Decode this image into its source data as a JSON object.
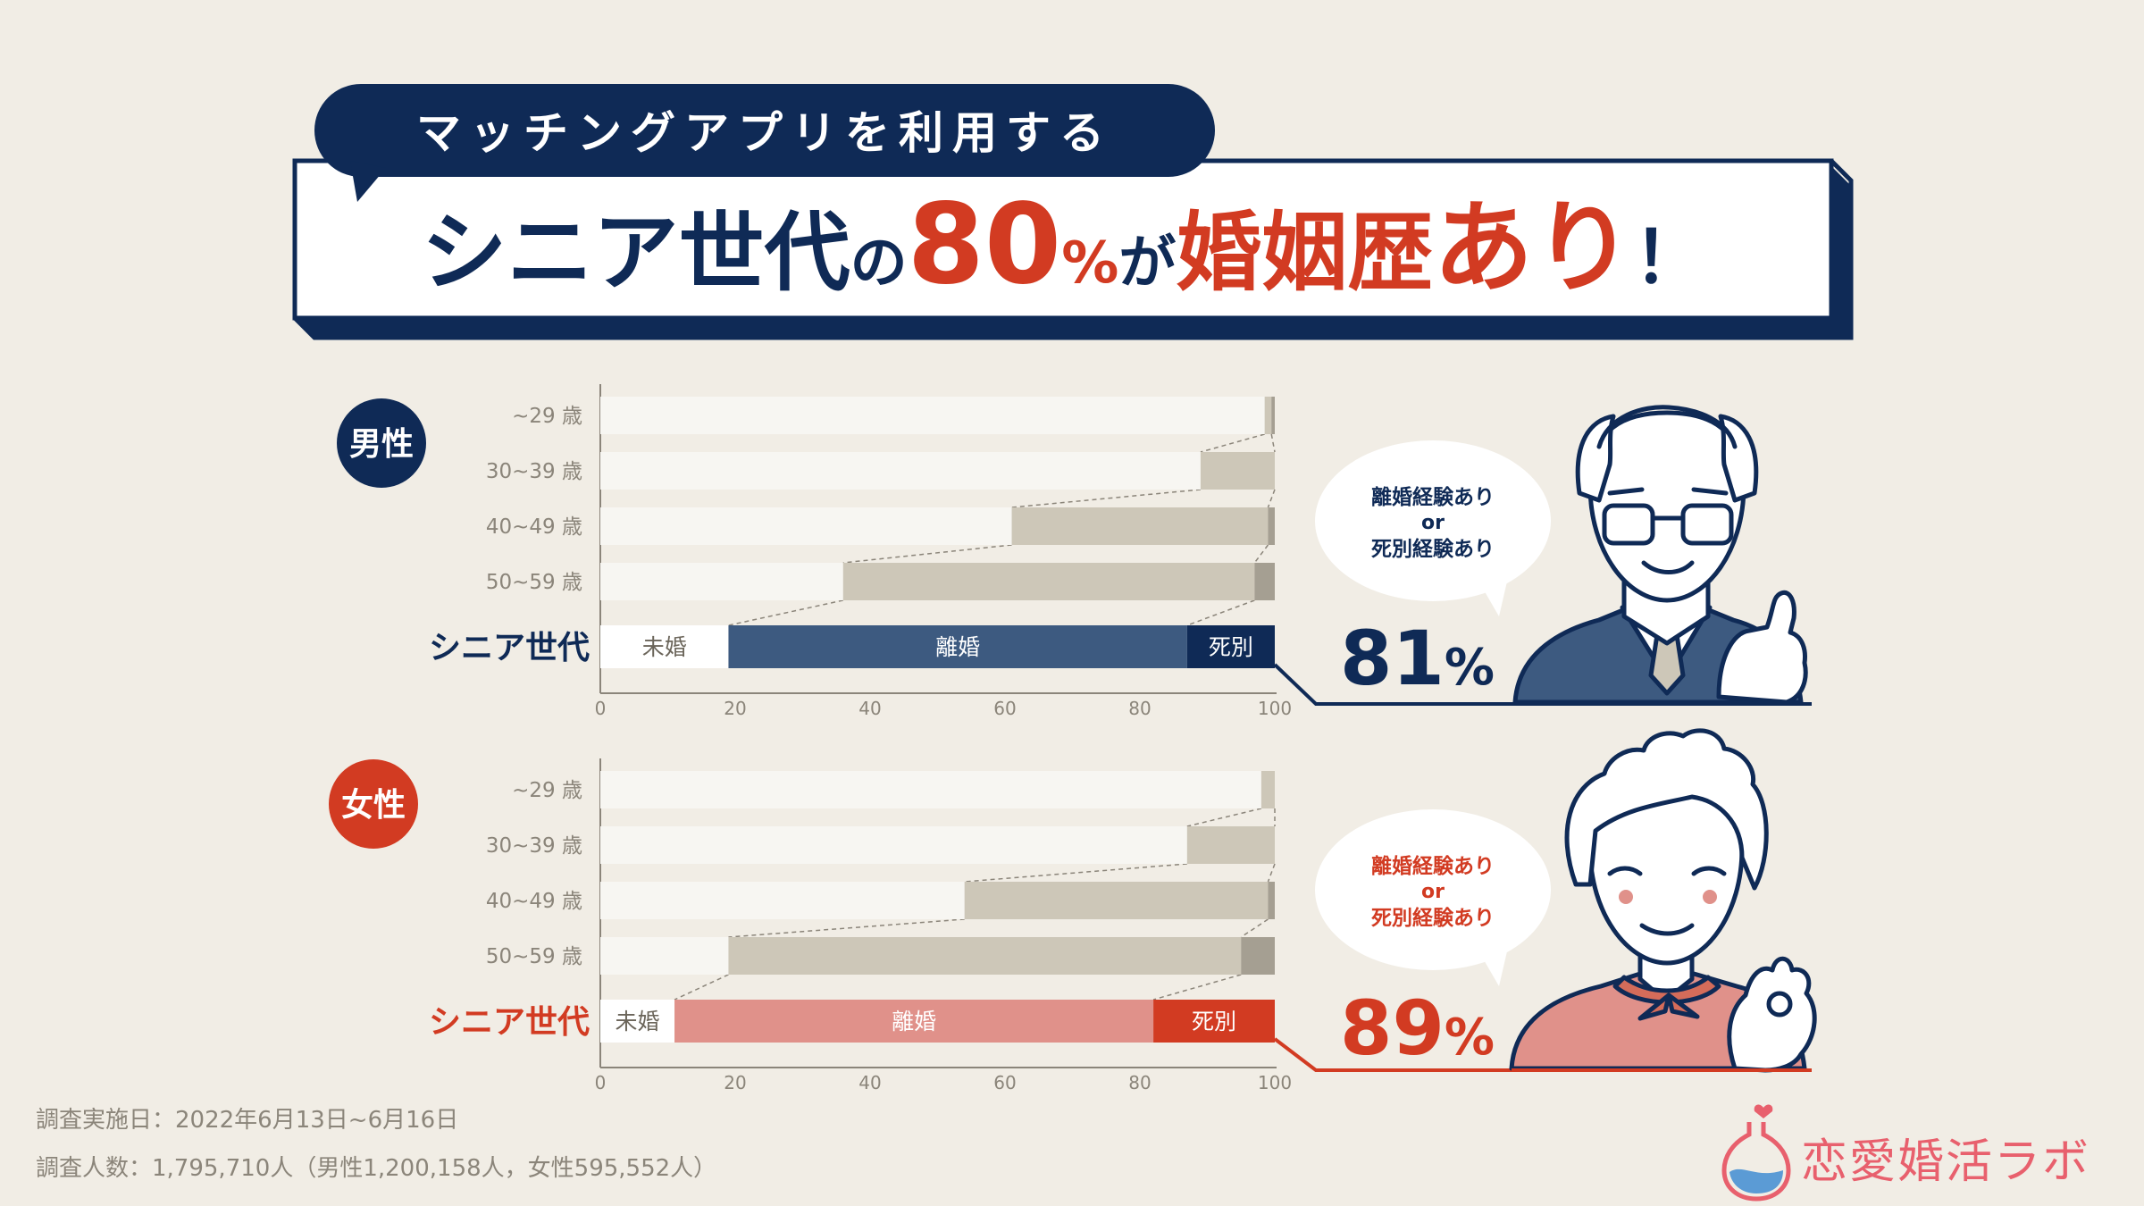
{
  "header": {
    "bubble": "マッチングアプリを利用する",
    "headline": {
      "part1": "シニア世代",
      "part2": "の",
      "part3": "80",
      "part4": "%",
      "part5": "が",
      "part6": "婚姻歴",
      "part7": "あり",
      "part8": "！"
    }
  },
  "colors": {
    "navy": "#0f2a56",
    "red": "#d23b22",
    "bg": "#f1ede5",
    "unmarried": "#f7f6f2",
    "divorced_grey": "#cdc7b8",
    "widowed_grey": "#a59f92",
    "male_divorced": "#3d5a80",
    "female_divorced": "#e0918a"
  },
  "chart_data": [
    {
      "type": "bar",
      "orientation": "horizontal",
      "stacked": true,
      "group_label": "男性",
      "categories": [
        "~29 歳",
        "30~39 歳",
        "40~49 歳",
        "50~59 歳",
        "シニア世代"
      ],
      "series": [
        {
          "name": "未婚",
          "values": [
            98.5,
            89,
            61,
            36,
            19
          ]
        },
        {
          "name": "離婚",
          "values": [
            1,
            11,
            38,
            61,
            68
          ]
        },
        {
          "name": "死別",
          "values": [
            0.5,
            0,
            1,
            3,
            13
          ]
        }
      ],
      "xlim": [
        0,
        100
      ],
      "x_ticks": [
        "0",
        "20",
        "40",
        "60",
        "80",
        "100"
      ],
      "segment_labels": [
        "未婚",
        "離婚",
        "死別"
      ],
      "callout": {
        "line1": "離婚経験あり",
        "line2": "or",
        "line3": "死別経験あり",
        "value": "81",
        "unit": "%"
      }
    },
    {
      "type": "bar",
      "orientation": "horizontal",
      "stacked": true,
      "group_label": "女性",
      "categories": [
        "~29 歳",
        "30~39 歳",
        "40~49 歳",
        "50~59 歳",
        "シニア世代"
      ],
      "series": [
        {
          "name": "未婚",
          "values": [
            98,
            87,
            54,
            19,
            11
          ]
        },
        {
          "name": "離婚",
          "values": [
            2,
            13,
            45,
            76,
            71
          ]
        },
        {
          "name": "死別",
          "values": [
            0,
            0,
            1,
            5,
            18
          ]
        }
      ],
      "xlim": [
        0,
        100
      ],
      "x_ticks": [
        "0",
        "20",
        "40",
        "60",
        "80",
        "100"
      ],
      "segment_labels": [
        "未婚",
        "離婚",
        "死別"
      ],
      "callout": {
        "line1": "離婚経験あり",
        "line2": "or",
        "line3": "死別経験あり",
        "value": "89",
        "unit": "%"
      }
    }
  ],
  "footer": {
    "date": "調査実施日：2022年6月13日~6月16日",
    "count": "調査人数：1,795,710人（男性1,200,158人，女性595,552人）"
  },
  "logo": {
    "text": "恋愛婚活ラボ"
  }
}
